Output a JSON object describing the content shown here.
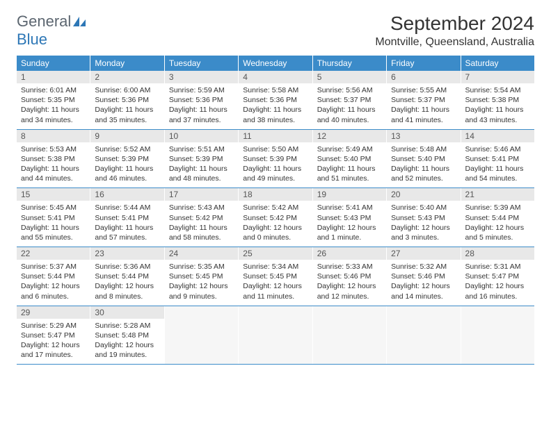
{
  "logo": {
    "text_general": "General",
    "text_blue": "Blue",
    "icon_color": "#2d77b6"
  },
  "title": "September 2024",
  "location": "Montville, Queensland, Australia",
  "colors": {
    "header_bg": "#3b8bc9",
    "daynum_bg": "#e8e8e8",
    "row_border": "#3b8bc9"
  },
  "day_headers": [
    "Sunday",
    "Monday",
    "Tuesday",
    "Wednesday",
    "Thursday",
    "Friday",
    "Saturday"
  ],
  "weeks": [
    [
      {
        "num": "1",
        "sunrise": "Sunrise: 6:01 AM",
        "sunset": "Sunset: 5:35 PM",
        "daylight1": "Daylight: 11 hours",
        "daylight2": "and 34 minutes."
      },
      {
        "num": "2",
        "sunrise": "Sunrise: 6:00 AM",
        "sunset": "Sunset: 5:36 PM",
        "daylight1": "Daylight: 11 hours",
        "daylight2": "and 35 minutes."
      },
      {
        "num": "3",
        "sunrise": "Sunrise: 5:59 AM",
        "sunset": "Sunset: 5:36 PM",
        "daylight1": "Daylight: 11 hours",
        "daylight2": "and 37 minutes."
      },
      {
        "num": "4",
        "sunrise": "Sunrise: 5:58 AM",
        "sunset": "Sunset: 5:36 PM",
        "daylight1": "Daylight: 11 hours",
        "daylight2": "and 38 minutes."
      },
      {
        "num": "5",
        "sunrise": "Sunrise: 5:56 AM",
        "sunset": "Sunset: 5:37 PM",
        "daylight1": "Daylight: 11 hours",
        "daylight2": "and 40 minutes."
      },
      {
        "num": "6",
        "sunrise": "Sunrise: 5:55 AM",
        "sunset": "Sunset: 5:37 PM",
        "daylight1": "Daylight: 11 hours",
        "daylight2": "and 41 minutes."
      },
      {
        "num": "7",
        "sunrise": "Sunrise: 5:54 AM",
        "sunset": "Sunset: 5:38 PM",
        "daylight1": "Daylight: 11 hours",
        "daylight2": "and 43 minutes."
      }
    ],
    [
      {
        "num": "8",
        "sunrise": "Sunrise: 5:53 AM",
        "sunset": "Sunset: 5:38 PM",
        "daylight1": "Daylight: 11 hours",
        "daylight2": "and 44 minutes."
      },
      {
        "num": "9",
        "sunrise": "Sunrise: 5:52 AM",
        "sunset": "Sunset: 5:39 PM",
        "daylight1": "Daylight: 11 hours",
        "daylight2": "and 46 minutes."
      },
      {
        "num": "10",
        "sunrise": "Sunrise: 5:51 AM",
        "sunset": "Sunset: 5:39 PM",
        "daylight1": "Daylight: 11 hours",
        "daylight2": "and 48 minutes."
      },
      {
        "num": "11",
        "sunrise": "Sunrise: 5:50 AM",
        "sunset": "Sunset: 5:39 PM",
        "daylight1": "Daylight: 11 hours",
        "daylight2": "and 49 minutes."
      },
      {
        "num": "12",
        "sunrise": "Sunrise: 5:49 AM",
        "sunset": "Sunset: 5:40 PM",
        "daylight1": "Daylight: 11 hours",
        "daylight2": "and 51 minutes."
      },
      {
        "num": "13",
        "sunrise": "Sunrise: 5:48 AM",
        "sunset": "Sunset: 5:40 PM",
        "daylight1": "Daylight: 11 hours",
        "daylight2": "and 52 minutes."
      },
      {
        "num": "14",
        "sunrise": "Sunrise: 5:46 AM",
        "sunset": "Sunset: 5:41 PM",
        "daylight1": "Daylight: 11 hours",
        "daylight2": "and 54 minutes."
      }
    ],
    [
      {
        "num": "15",
        "sunrise": "Sunrise: 5:45 AM",
        "sunset": "Sunset: 5:41 PM",
        "daylight1": "Daylight: 11 hours",
        "daylight2": "and 55 minutes."
      },
      {
        "num": "16",
        "sunrise": "Sunrise: 5:44 AM",
        "sunset": "Sunset: 5:41 PM",
        "daylight1": "Daylight: 11 hours",
        "daylight2": "and 57 minutes."
      },
      {
        "num": "17",
        "sunrise": "Sunrise: 5:43 AM",
        "sunset": "Sunset: 5:42 PM",
        "daylight1": "Daylight: 11 hours",
        "daylight2": "and 58 minutes."
      },
      {
        "num": "18",
        "sunrise": "Sunrise: 5:42 AM",
        "sunset": "Sunset: 5:42 PM",
        "daylight1": "Daylight: 12 hours",
        "daylight2": "and 0 minutes."
      },
      {
        "num": "19",
        "sunrise": "Sunrise: 5:41 AM",
        "sunset": "Sunset: 5:43 PM",
        "daylight1": "Daylight: 12 hours",
        "daylight2": "and 1 minute."
      },
      {
        "num": "20",
        "sunrise": "Sunrise: 5:40 AM",
        "sunset": "Sunset: 5:43 PM",
        "daylight1": "Daylight: 12 hours",
        "daylight2": "and 3 minutes."
      },
      {
        "num": "21",
        "sunrise": "Sunrise: 5:39 AM",
        "sunset": "Sunset: 5:44 PM",
        "daylight1": "Daylight: 12 hours",
        "daylight2": "and 5 minutes."
      }
    ],
    [
      {
        "num": "22",
        "sunrise": "Sunrise: 5:37 AM",
        "sunset": "Sunset: 5:44 PM",
        "daylight1": "Daylight: 12 hours",
        "daylight2": "and 6 minutes."
      },
      {
        "num": "23",
        "sunrise": "Sunrise: 5:36 AM",
        "sunset": "Sunset: 5:44 PM",
        "daylight1": "Daylight: 12 hours",
        "daylight2": "and 8 minutes."
      },
      {
        "num": "24",
        "sunrise": "Sunrise: 5:35 AM",
        "sunset": "Sunset: 5:45 PM",
        "daylight1": "Daylight: 12 hours",
        "daylight2": "and 9 minutes."
      },
      {
        "num": "25",
        "sunrise": "Sunrise: 5:34 AM",
        "sunset": "Sunset: 5:45 PM",
        "daylight1": "Daylight: 12 hours",
        "daylight2": "and 11 minutes."
      },
      {
        "num": "26",
        "sunrise": "Sunrise: 5:33 AM",
        "sunset": "Sunset: 5:46 PM",
        "daylight1": "Daylight: 12 hours",
        "daylight2": "and 12 minutes."
      },
      {
        "num": "27",
        "sunrise": "Sunrise: 5:32 AM",
        "sunset": "Sunset: 5:46 PM",
        "daylight1": "Daylight: 12 hours",
        "daylight2": "and 14 minutes."
      },
      {
        "num": "28",
        "sunrise": "Sunrise: 5:31 AM",
        "sunset": "Sunset: 5:47 PM",
        "daylight1": "Daylight: 12 hours",
        "daylight2": "and 16 minutes."
      }
    ],
    [
      {
        "num": "29",
        "sunrise": "Sunrise: 5:29 AM",
        "sunset": "Sunset: 5:47 PM",
        "daylight1": "Daylight: 12 hours",
        "daylight2": "and 17 minutes."
      },
      {
        "num": "30",
        "sunrise": "Sunrise: 5:28 AM",
        "sunset": "Sunset: 5:48 PM",
        "daylight1": "Daylight: 12 hours",
        "daylight2": "and 19 minutes."
      },
      null,
      null,
      null,
      null,
      null
    ]
  ]
}
